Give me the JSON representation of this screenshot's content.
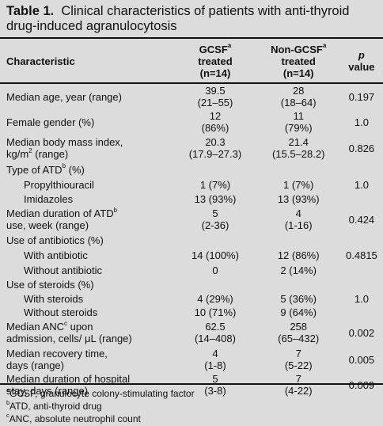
{
  "title": {
    "label": "Table 1.",
    "text": "Clinical characteristics of patients with anti-thyroid drug-induced agranulocytosis"
  },
  "header": {
    "characteristic": "Characteristic",
    "gcsf_line1": "GCSF",
    "gcsf_sup": "a",
    "gcsf_line2": "treated",
    "gcsf_line3": "(n=14)",
    "nongcsf_line1": "Non-GCSF",
    "nongcsf_sup": "a",
    "nongcsf_line2": "treated",
    "nongcsf_line3": "(n=14)",
    "p_line1": "p",
    "p_line2": "value"
  },
  "rows": {
    "age": {
      "label": "Median age, year  (range)",
      "gcsf1": "39.5",
      "gcsf2": "(21–55)",
      "non1": "28",
      "non2": "(18–64)",
      "p": "0.197"
    },
    "female": {
      "label": "Female gender (%)",
      "gcsf1": "12",
      "gcsf2": "(86%)",
      "non1": "11",
      "non2": "(79%)",
      "p": "1.0"
    },
    "bmi": {
      "label1": "Median body mass index,",
      "label2a": "kg/m",
      "label2sup": "2",
      "label2b": " (range)",
      "gcsf1": "20.3",
      "gcsf2": "(17.9–27.3)",
      "non1": "21.4",
      "non2": "(15.5–28.2)",
      "p": "0.826"
    },
    "atd_type": {
      "label_a": "Type of ATD",
      "label_sup": "b",
      "label_b": " (%)"
    },
    "ptu": {
      "label": "Propylthiouracil",
      "gcsf": "1 (7%)",
      "non": "1 (7%)",
      "p": "1.0"
    },
    "imid": {
      "label": "Imidazoles",
      "gcsf": "13 (93%)",
      "non": "13 (93%)"
    },
    "atd_dur": {
      "label1a": "Median duration of ATD",
      "label1sup": "b",
      "label2": "use, week (range)",
      "gcsf1": "5",
      "gcsf2": "(2-36)",
      "non1": "4",
      "non2": "(1-16)",
      "p": "0.424"
    },
    "abx": {
      "label": "Use of antibiotics (%)"
    },
    "with_abx": {
      "label": "With antibiotic",
      "gcsf": "14 (100%)",
      "non": "12 (86%)",
      "p": "0.4815"
    },
    "without_abx": {
      "label": "Without antibiotic",
      "gcsf": "0",
      "non": "2 (14%)"
    },
    "steroids": {
      "label": "Use of steroids (%)"
    },
    "with_ster": {
      "label": "With steroids",
      "gcsf": "4 (29%)",
      "non": "5 (36%)",
      "p": "1.0"
    },
    "without_ster": {
      "label": "Without steroids",
      "gcsf": "10 (71%)",
      "non": "9 (64%)"
    },
    "anc": {
      "label1a": "Median ANC",
      "label1sup": "c",
      "label1b": " upon",
      "label2": "admission, cells/ μL (range)",
      "gcsf1": "62.5",
      "gcsf2": "(14–408)",
      "non1": "258",
      "non2": "(65–432)",
      "p": "0.002"
    },
    "recovery": {
      "label1": "Median recovery time,",
      "label2": "days (range)",
      "gcsf1": "4",
      "gcsf2": "(1-8)",
      "non1": "7",
      "non2": "(5-22)",
      "p": "0.005"
    },
    "stay": {
      "label1": "Median duration of hospital",
      "label2": "stay, days (range)",
      "gcsf1": "5",
      "gcsf2": "(3-8)",
      "non1": "7",
      "non2": "(4-22)",
      "p": "0.009"
    }
  },
  "footnotes": {
    "a_sup": "a",
    "a": "GCSF, granulocyte colony-stimulating factor",
    "b_sup": "b",
    "b": "ATD, anti-thyroid drug",
    "c_sup": "c",
    "c": "ANC, absolute neutrophil count"
  }
}
